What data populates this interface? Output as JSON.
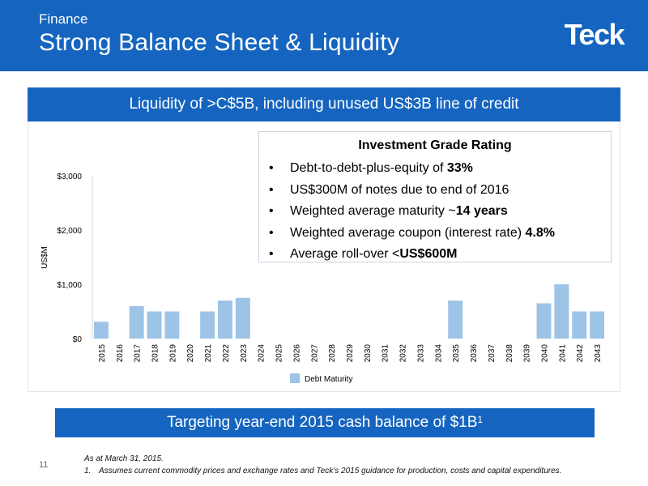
{
  "header": {
    "section": "Finance",
    "title": "Strong Balance Sheet & Liquidity",
    "logo_text": "Teck",
    "color": "#1565c0"
  },
  "top_banner": "Liquidity of >C$5B, including unused US$3B line of credit",
  "rating_box": {
    "title": "Investment Grade Rating",
    "bullet_glyph": "•",
    "items": [
      {
        "text": "Debt-to-debt-plus-equity of ",
        "bold": "33%"
      },
      {
        "text": "US$300M of notes due to end of 2016",
        "bold": ""
      },
      {
        "text": "Weighted average maturity ~",
        "bold": "14 years"
      },
      {
        "text": "Weighted average coupon (interest rate) ",
        "bold": "4.8%"
      },
      {
        "text": "Average roll-over <",
        "bold": "US$600M"
      }
    ]
  },
  "bottom_banner": {
    "text": "Targeting year-end 2015 cash balance of $1B",
    "sup": "1"
  },
  "footer": {
    "page_number": "11",
    "date_note": "As at March 31, 2015.",
    "note_number": "1.",
    "note_text": "Assumes current commodity prices and exchange rates and Teck’s 2015 guidance for production, costs and capital expenditures."
  },
  "chart_data": {
    "type": "bar",
    "categories": [
      "2015",
      "2016",
      "2017",
      "2018",
      "2019",
      "2020",
      "2021",
      "2022",
      "2023",
      "2024",
      "2025",
      "2026",
      "2027",
      "2028",
      "2029",
      "2030",
      "2031",
      "2032",
      "2033",
      "2034",
      "2035",
      "2036",
      "2037",
      "2038",
      "2039",
      "2040",
      "2041",
      "2042",
      "2043"
    ],
    "series": [
      {
        "name": "Debt Maturity",
        "values": [
          310,
          0,
          600,
          500,
          500,
          0,
          500,
          700,
          750,
          0,
          0,
          0,
          0,
          0,
          0,
          0,
          0,
          0,
          0,
          0,
          700,
          0,
          0,
          0,
          0,
          650,
          1000,
          500,
          500
        ]
      }
    ],
    "ylabel": "US$M",
    "yticks": [
      "$0",
      "$1,000",
      "$2,000",
      "$3,000"
    ],
    "ylim": [
      0,
      3000
    ],
    "legend_position": "bottom",
    "bar_color": "#9dc3e6",
    "grid": false
  }
}
